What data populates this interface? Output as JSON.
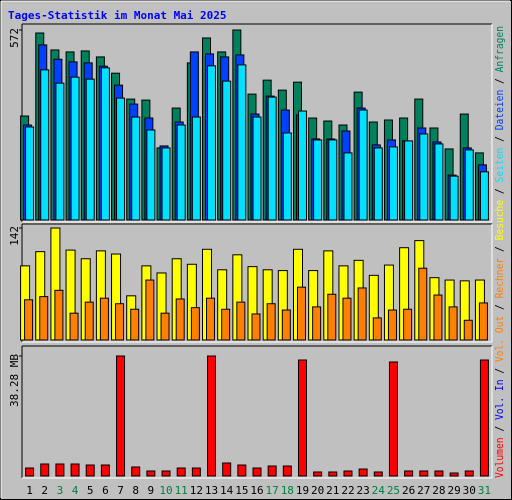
{
  "title": "Tages-Statistik im Monat Mai 2025",
  "legend_separator": " / ",
  "chart_data": [
    {
      "type": "bar",
      "ylim": [
        0,
        572
      ],
      "yticks": [
        572
      ],
      "series": [
        {
          "name": "Anfragen",
          "color": "#00805c",
          "values": [
            313,
            563,
            512,
            506,
            509,
            491,
            442,
            364,
            361,
            217,
            337,
            473,
            548,
            506,
            572,
            379,
            421,
            391,
            415,
            307,
            298,
            286,
            385,
            295,
            301,
            307,
            364,
            277,
            214,
            319,
            202
          ]
        },
        {
          "name": "Dateien",
          "color": "#0040ff",
          "values": [
            286,
            527,
            484,
            476,
            473,
            463,
            406,
            349,
            307,
            223,
            295,
            506,
            500,
            491,
            497,
            319,
            373,
            331,
            316,
            244,
            244,
            268,
            337,
            226,
            241,
            238,
            277,
            235,
            135,
            217,
            166
          ]
        },
        {
          "name": "Seiten",
          "color": "#00e0ff",
          "values": [
            280,
            452,
            412,
            430,
            424,
            458,
            367,
            310,
            271,
            217,
            286,
            310,
            464,
            418,
            467,
            310,
            370,
            262,
            328,
            241,
            241,
            202,
            331,
            217,
            220,
            238,
            259,
            229,
            132,
            211,
            145
          ]
        }
      ]
    },
    {
      "type": "bar",
      "ylim": [
        0,
        142
      ],
      "yticks": [
        142
      ],
      "series": [
        {
          "name": "Besuche",
          "color": "#ffff00",
          "values": [
            94,
            112,
            142,
            114,
            103,
            113,
            109,
            56,
            94,
            85,
            103,
            96,
            115,
            89,
            108,
            93,
            89,
            88,
            115,
            88,
            113,
            94,
            101,
            82,
            95,
            117,
            126,
            79,
            76,
            75,
            76
          ]
        },
        {
          "name": "Rechner",
          "color": "#ff8000",
          "values": [
            51,
            55,
            63,
            34,
            48,
            53,
            46,
            39,
            76,
            34,
            52,
            41,
            53,
            39,
            48,
            33,
            46,
            38,
            67,
            42,
            58,
            53,
            66,
            28,
            38,
            39,
            91,
            57,
            42,
            25,
            47
          ]
        }
      ]
    },
    {
      "type": "bar",
      "ylim": [
        0,
        38.28
      ],
      "yticks": [
        {
          "value": 38.28,
          "label": "38.28 MB"
        }
      ],
      "categories": [
        "1",
        "2",
        "3",
        "4",
        "5",
        "6",
        "7",
        "8",
        "9",
        "10",
        "11",
        "12",
        "13",
        "14",
        "15",
        "16",
        "17",
        "18",
        "19",
        "20",
        "21",
        "22",
        "23",
        "24",
        "25",
        "26",
        "27",
        "28",
        "29",
        "30",
        "31"
      ],
      "weekend_indices": [
        2,
        3,
        9,
        10,
        16,
        17,
        23,
        24,
        30
      ],
      "weekend_color": "#008040",
      "series": [
        {
          "name": "Volumen",
          "color": "#ff0000",
          "values": [
            2.55,
            3.83,
            3.83,
            3.83,
            3.51,
            3.51,
            38.28,
            2.87,
            1.6,
            1.6,
            2.55,
            2.55,
            38.28,
            4.15,
            3.51,
            2.55,
            3.19,
            3.19,
            37.0,
            1.28,
            1.28,
            1.6,
            2.23,
            1.28,
            36.37,
            1.6,
            1.6,
            1.6,
            0.96,
            1.6,
            37.0
          ]
        }
      ],
      "extra_legend": [
        {
          "name": "Vol. In",
          "color": "#0000ff"
        },
        {
          "name": "Vol. Out",
          "color": "#ff8000"
        }
      ]
    }
  ]
}
